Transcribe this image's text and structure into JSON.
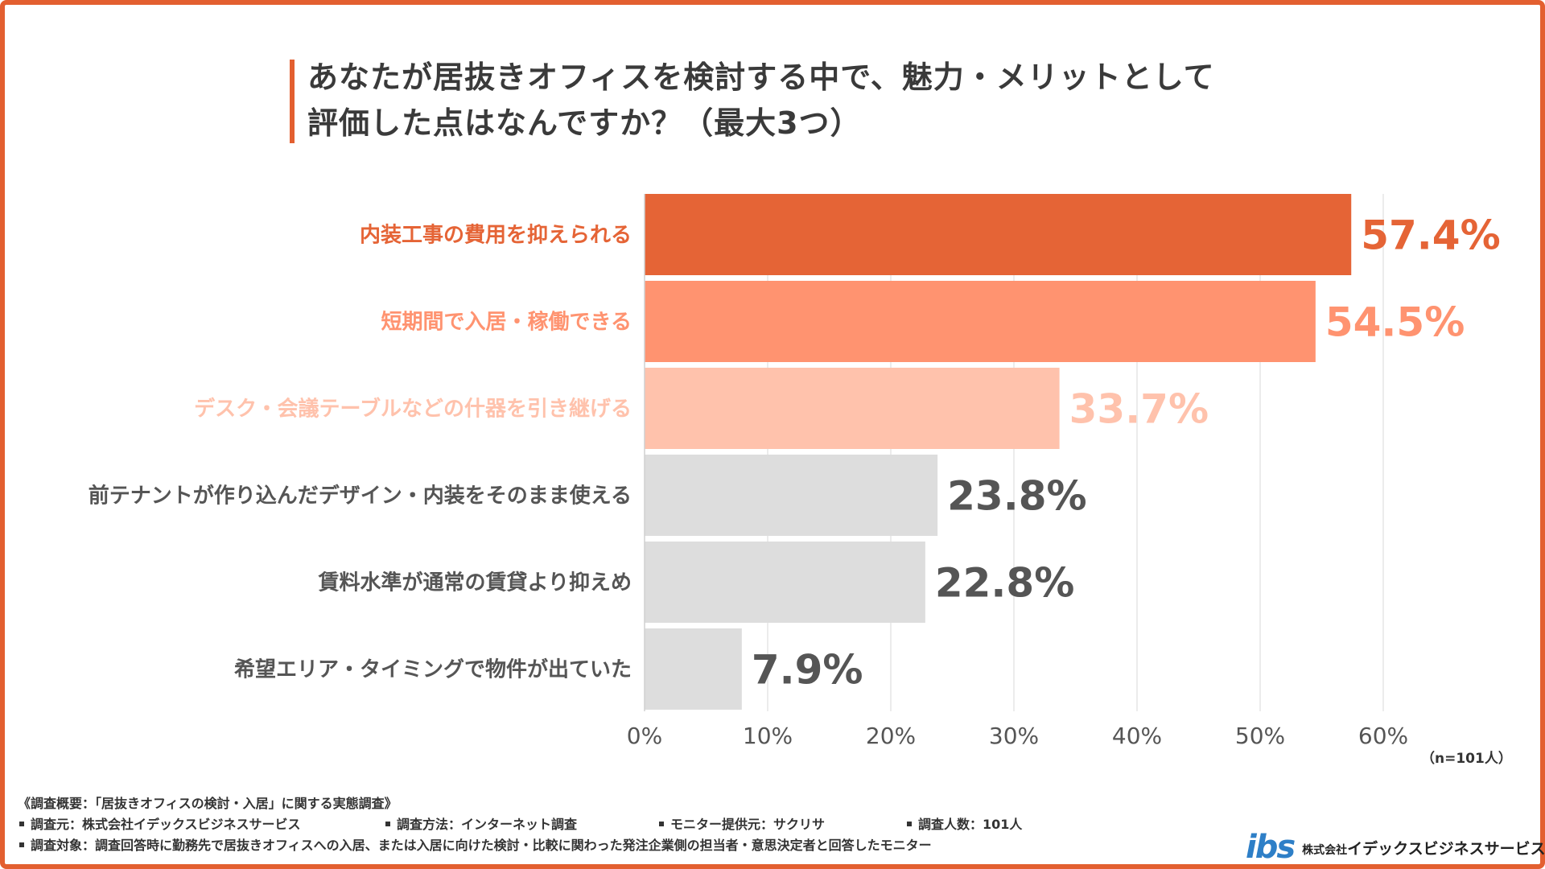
{
  "title_lines": [
    "あなたが居抜きオフィスを検討する中で、魅力・メリットとして",
    "評価した点はなんですか？（最大3つ）"
  ],
  "chart_data": {
    "type": "bar",
    "orientation": "horizontal",
    "categories": [
      "内装工事の費用を抑えられる",
      "短期間で入居・稼働できる",
      "デスク・会議テーブルなどの什器を引き継げる",
      "前テナントが作り込んだデザイン・内装をそのまま使える",
      "賃料水準が通常の賃貸より抑えめ",
      "希望エリア・タイミングで物件が出ていた"
    ],
    "values": [
      57.4,
      54.5,
      33.7,
      23.8,
      22.8,
      7.9
    ],
    "value_labels": [
      "57.4%",
      "54.5%",
      "33.7%",
      "23.8%",
      "22.8%",
      "7.9%"
    ],
    "bar_colors": [
      "#e56436",
      "#ff9370",
      "#ffc2ac",
      "#dddddd",
      "#dddddd",
      "#dddddd"
    ],
    "label_colors": [
      "#e56436",
      "#ff9370",
      "#ffc2ac",
      "#555555",
      "#555555",
      "#555555"
    ],
    "xlim": [
      0,
      60
    ],
    "xticks": [
      0,
      10,
      20,
      30,
      40,
      50,
      60
    ],
    "xtick_labels": [
      "0%",
      "10%",
      "20%",
      "30%",
      "40%",
      "50%",
      "60%"
    ],
    "grid": true
  },
  "sample_note": "（n=101人）",
  "footer": {
    "survey_title": "《調査概要：「居抜きオフィスの検討・入居」に関する実態調査》",
    "items_row1": [
      "調査元：株式会社イデックスビジネスサービス",
      "調査方法：インターネット調査",
      "モニター提供元：サクリサ",
      "調査人数：101人"
    ],
    "items_row2": [
      "調査対象：調査回答時に勤務先で居抜きオフィスへの入居、または入居に向けた検討・比較に関わった発注企業側の担当者・意思決定者と回答したモニター"
    ]
  },
  "logo": {
    "mark": "ibs",
    "company_prefix": "株式会社",
    "company_name": "イデックスビジネスサービス"
  }
}
